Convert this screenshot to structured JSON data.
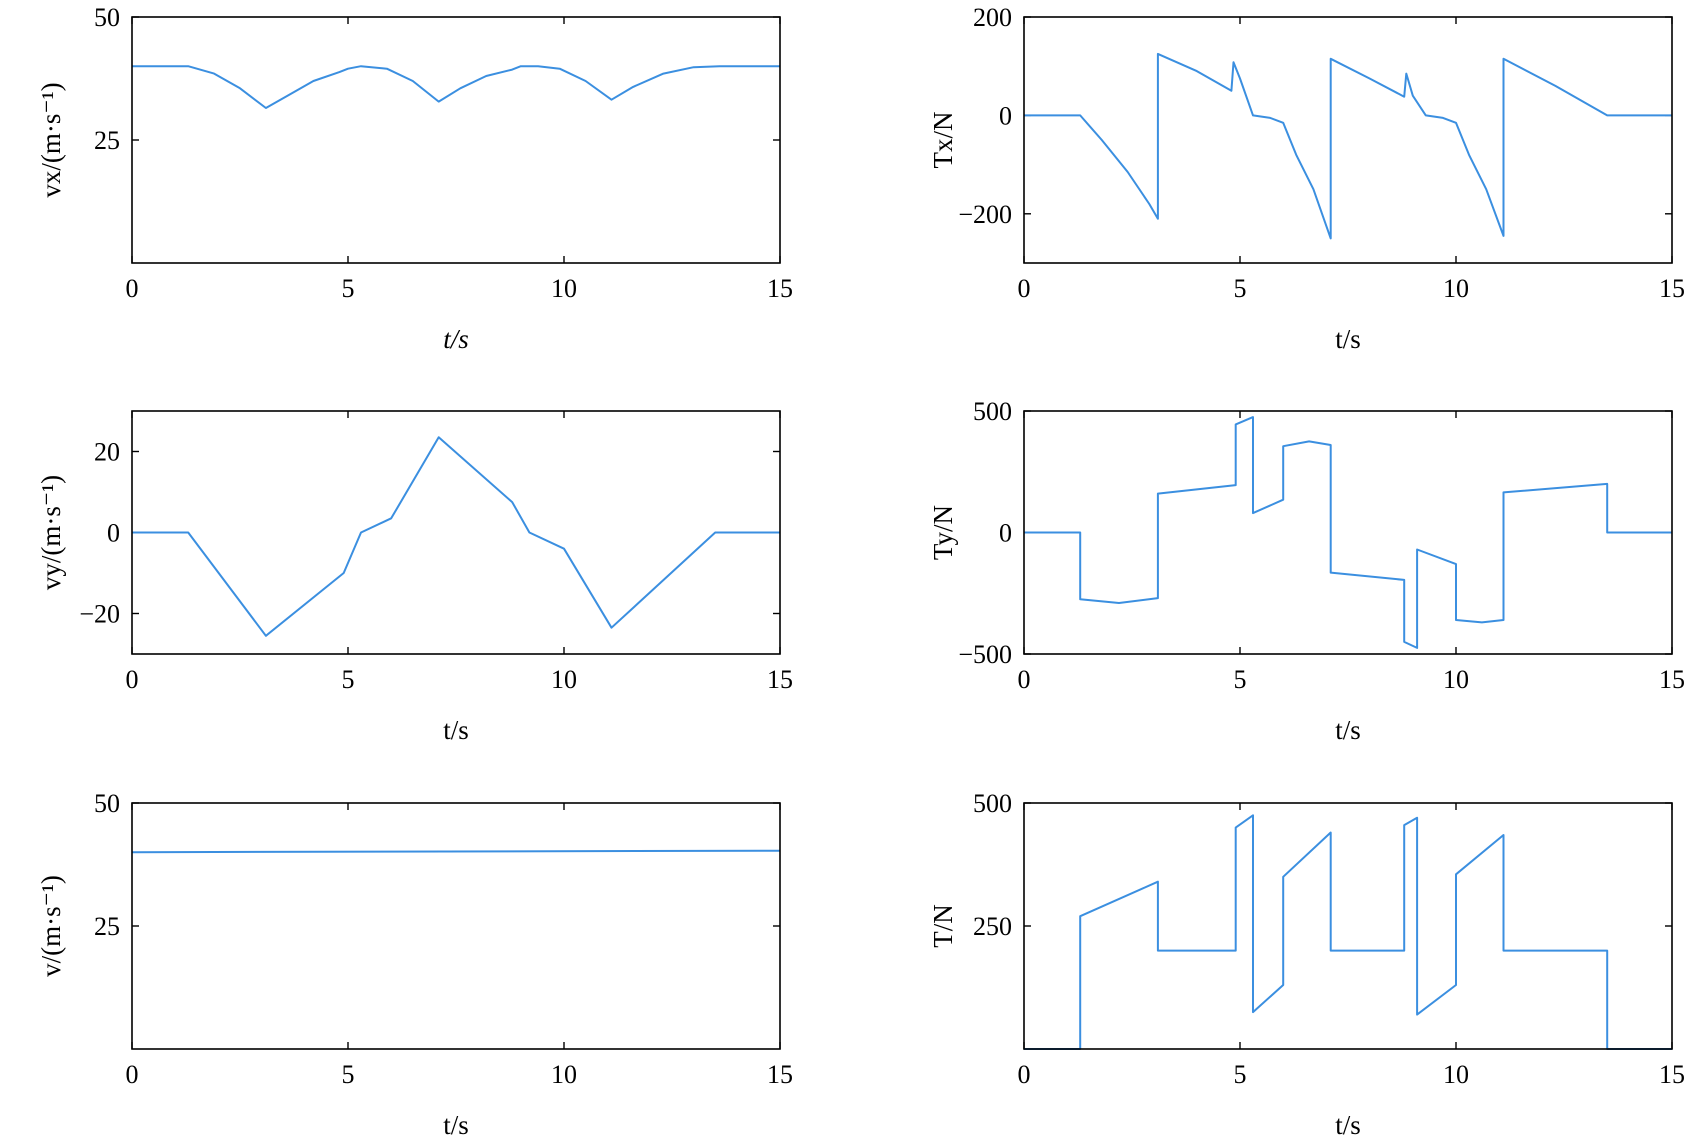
{
  "chart_data": [
    {
      "type": "line",
      "xlabel": "t/s",
      "ylabel": "vx/(m·s⁻¹)",
      "xlim": [
        0,
        15
      ],
      "ylim": [
        0,
        50
      ],
      "xticks": [
        0,
        5,
        10,
        15
      ],
      "yticks": [
        25,
        50
      ],
      "series": [
        {
          "color": "#3b8fe0",
          "x": [
            0,
            1.3,
            1.9,
            2.5,
            3.1,
            3.6,
            4.2,
            4.8,
            5.0,
            5.3,
            5.9,
            6.5,
            7.1,
            7.6,
            8.2,
            8.8,
            9.0,
            9.4,
            9.9,
            10.5,
            11.1,
            11.6,
            12.3,
            13.0,
            13.6,
            15.0
          ],
          "y": [
            40,
            40,
            38.5,
            35.5,
            31.5,
            34,
            37,
            38.8,
            39.5,
            40,
            39.5,
            37,
            32.8,
            35.5,
            38,
            39.3,
            40,
            40,
            39.5,
            37,
            33.2,
            35.8,
            38.5,
            39.8,
            40,
            40
          ]
        }
      ]
    },
    {
      "type": "line",
      "xlabel": "t/s",
      "ylabel": "Tx/N",
      "xlim": [
        0,
        15
      ],
      "ylim": [
        -300,
        200
      ],
      "xticks": [
        0,
        5,
        10,
        15
      ],
      "yticks": [
        -200,
        0,
        200
      ],
      "series": [
        {
          "color": "#3b8fe0",
          "x": [
            0,
            1.3,
            1.8,
            2.4,
            2.9,
            3.1,
            3.1,
            4.0,
            4.8,
            4.85,
            5.0,
            5.3,
            5.7,
            6.0,
            6.3,
            6.7,
            7.1,
            7.1,
            8.0,
            8.8,
            8.85,
            9.0,
            9.3,
            9.7,
            10.0,
            10.3,
            10.7,
            11.1,
            11.1,
            12.3,
            13.5,
            15.0
          ],
          "y": [
            0,
            0,
            -50,
            -115,
            -180,
            -210,
            125,
            90,
            50,
            108,
            75,
            0,
            -5,
            -15,
            -80,
            -150,
            -250,
            115,
            75,
            38,
            85,
            40,
            0,
            -5,
            -15,
            -80,
            -150,
            -245,
            115,
            60,
            0,
            0
          ]
        }
      ]
    },
    {
      "type": "line",
      "xlabel": "t/s",
      "ylabel": "vy/(m·s⁻¹)",
      "xlim": [
        0,
        15
      ],
      "ylim": [
        -30,
        30
      ],
      "xticks": [
        0,
        5,
        10,
        15
      ],
      "yticks": [
        -20,
        0,
        20
      ],
      "series": [
        {
          "color": "#3b8fe0",
          "x": [
            0,
            1.3,
            3.1,
            4.9,
            5.3,
            6.0,
            7.1,
            8.8,
            9.2,
            10.0,
            11.1,
            13.5,
            15.0
          ],
          "y": [
            0,
            0,
            -25.5,
            -10,
            0,
            3.5,
            23.5,
            7.5,
            0,
            -4,
            -23.5,
            0,
            0
          ]
        }
      ]
    },
    {
      "type": "line",
      "xlabel": "t/s",
      "ylabel": "Ty/N",
      "xlim": [
        0,
        15
      ],
      "ylim": [
        -500,
        500
      ],
      "xticks": [
        0,
        5,
        10,
        15
      ],
      "yticks": [
        -500,
        0,
        500
      ],
      "series": [
        {
          "color": "#3b8fe0",
          "x": [
            0,
            1.3,
            1.3,
            2.2,
            3.1,
            3.1,
            4.9,
            4.9,
            5.3,
            5.3,
            6.0,
            6.0,
            6.6,
            7.1,
            7.1,
            8.8,
            8.8,
            9.1,
            9.1,
            10.0,
            10.0,
            10.6,
            11.1,
            11.1,
            13.5,
            13.5,
            15.0
          ],
          "y": [
            0,
            0,
            -275,
            -290,
            -270,
            160,
            195,
            445,
            475,
            80,
            135,
            355,
            375,
            360,
            -165,
            -195,
            -450,
            -475,
            -70,
            -130,
            -360,
            -370,
            -360,
            165,
            200,
            0,
            0
          ]
        }
      ]
    },
    {
      "type": "line",
      "xlabel": "t/s",
      "ylabel": "v/(m·s⁻¹)",
      "xlim": [
        0,
        15
      ],
      "ylim": [
        0,
        50
      ],
      "xticks": [
        0,
        5,
        10,
        15
      ],
      "yticks": [
        25,
        50
      ],
      "series": [
        {
          "color": "#3b8fe0",
          "x": [
            0,
            15
          ],
          "y": [
            40,
            40.3
          ]
        }
      ]
    },
    {
      "type": "line",
      "xlabel": "t/s",
      "ylabel": "T/N",
      "xlim": [
        0,
        15
      ],
      "ylim": [
        0,
        500
      ],
      "xticks": [
        0,
        5,
        10,
        15
      ],
      "yticks": [
        250,
        500
      ],
      "series": [
        {
          "color": "#3b8fe0",
          "x": [
            0,
            1.3,
            1.3,
            3.1,
            3.1,
            4.9,
            4.9,
            5.3,
            5.3,
            6.0,
            6.0,
            7.1,
            7.1,
            8.8,
            8.8,
            9.1,
            9.1,
            10.0,
            10.0,
            11.1,
            11.1,
            13.5,
            13.5,
            15.0
          ],
          "y": [
            0,
            0,
            270,
            340,
            200,
            200,
            450,
            475,
            75,
            130,
            350,
            440,
            200,
            200,
            455,
            470,
            70,
            130,
            355,
            435,
            200,
            200,
            0,
            0
          ]
        }
      ]
    }
  ]
}
